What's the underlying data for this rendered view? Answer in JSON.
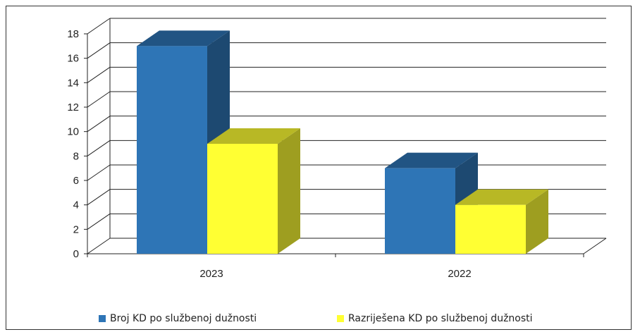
{
  "chart_data": {
    "type": "bar",
    "categories": [
      "2023",
      "2022"
    ],
    "series": [
      {
        "name": "Broj KD po službenoj dužnosti",
        "values": [
          17,
          7
        ],
        "color": "#2e75b6"
      },
      {
        "name": "Razriješena KD po službenoj dužnosti",
        "values": [
          9,
          4
        ],
        "color": "#ffff33"
      }
    ],
    "ylim": [
      0,
      18
    ],
    "yticks": [
      "0",
      "2",
      "4",
      "6",
      "8",
      "10",
      "12",
      "14",
      "16",
      "18"
    ],
    "title": "",
    "xlabel": "",
    "ylabel": "",
    "grid": true,
    "legend_position": "bottom",
    "style": "3d-column"
  }
}
